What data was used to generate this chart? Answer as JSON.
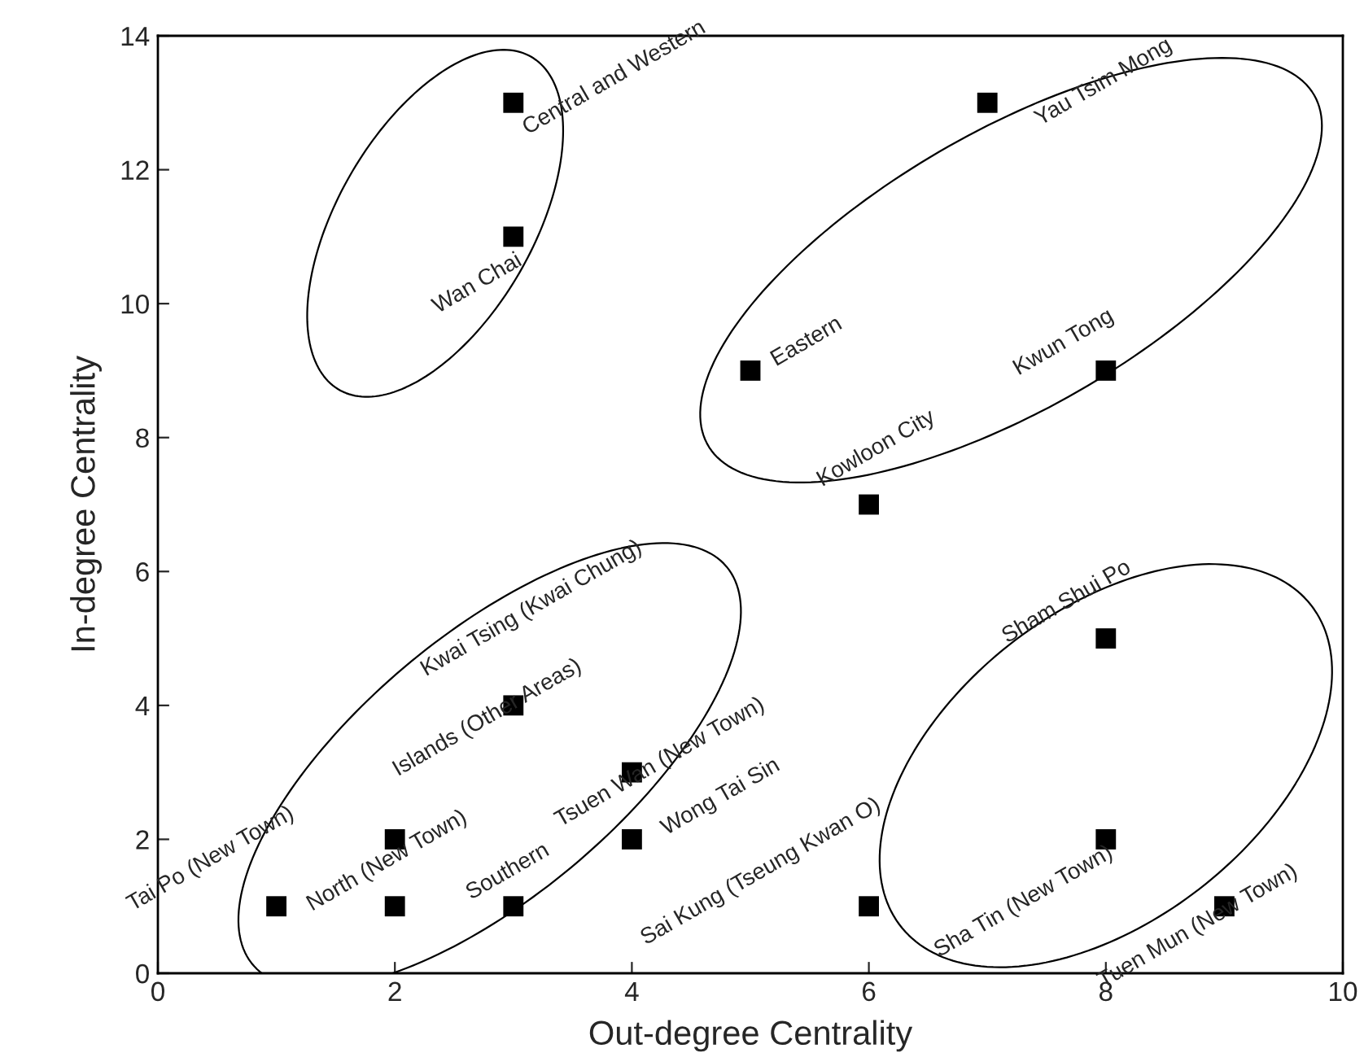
{
  "chart_data": {
    "type": "scatter",
    "xlabel": "Out-degree Centrality",
    "ylabel": "In-degree Centrality",
    "xlim": [
      0,
      10
    ],
    "xticks": [
      0,
      2,
      4,
      6,
      8,
      10
    ],
    "ylim": [
      0,
      14
    ],
    "yticks": [
      0,
      2,
      4,
      6,
      8,
      10,
      12,
      14
    ],
    "marker": "square",
    "grid": false,
    "legend": false,
    "series": [
      {
        "color": "#000000",
        "x": [
          3,
          3,
          7,
          5,
          8,
          6,
          3,
          2,
          4,
          4,
          1,
          2,
          3,
          8,
          6,
          8,
          9
        ],
        "values": [
          13,
          11,
          13,
          9,
          9,
          7,
          4,
          2,
          3,
          2,
          1,
          1,
          1,
          5,
          1,
          2,
          1
        ]
      }
    ],
    "annotations": [
      {
        "text": "Central and Western",
        "x": 3,
        "y": 13
      },
      {
        "text": "Wan Chai",
        "x": 3,
        "y": 11
      },
      {
        "text": "Yau Tsim Mong",
        "x": 7,
        "y": 13
      },
      {
        "text": "Eastern",
        "x": 5,
        "y": 9
      },
      {
        "text": "Kwun Tong",
        "x": 8,
        "y": 9
      },
      {
        "text": "Kowloon City",
        "x": 6,
        "y": 7
      },
      {
        "text": "Kwai Tsing (Kwai Chung)",
        "x": 3,
        "y": 4
      },
      {
        "text": "Islands (Other Areas)",
        "x": 2,
        "y": 2
      },
      {
        "text": "Tsuen Wan (New Town)",
        "x": 4,
        "y": 3
      },
      {
        "text": "Wong Tai Sin",
        "x": 4,
        "y": 2
      },
      {
        "text": "Tai Po (New Town)",
        "x": 1,
        "y": 1
      },
      {
        "text": "North (New Town)",
        "x": 2,
        "y": 1
      },
      {
        "text": "Southern",
        "x": 3,
        "y": 1
      },
      {
        "text": "Sham Shui Po",
        "x": 8,
        "y": 5
      },
      {
        "text": "Sai Kung (Tseung Kwan O)",
        "x": 6,
        "y": 1
      },
      {
        "text": "Sha Tin (New Town)",
        "x": 8,
        "y": 2
      },
      {
        "text": "Tuen Mun (New Town)",
        "x": 9,
        "y": 1
      }
    ]
  }
}
